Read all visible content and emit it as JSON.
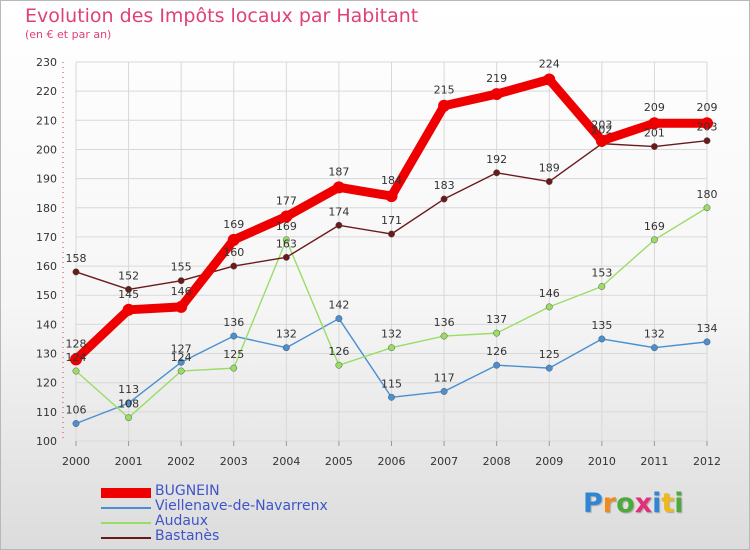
{
  "title": "Evolution des Impôts locaux par Habitant",
  "subtitle": "(en € et par an)",
  "brand": {
    "text": "Proxiti",
    "colors": [
      "#2f86d6",
      "#f08a1c",
      "#4ca93a",
      "#e0307c",
      "#2f86d6",
      "#f0b81c",
      "#4ca93a"
    ]
  },
  "chart_data": {
    "type": "line",
    "title": "Evolution des Impôts locaux par Habitant",
    "subtitle": "(en € et par an)",
    "xlabel": "",
    "ylabel": "",
    "x": [
      "2000",
      "2001",
      "2002",
      "2003",
      "2004",
      "2005",
      "2006",
      "2007",
      "2008",
      "2009",
      "2010",
      "2011",
      "2012"
    ],
    "ylim": [
      100,
      230
    ],
    "yticks": [
      100,
      110,
      120,
      130,
      140,
      150,
      160,
      170,
      180,
      190,
      200,
      210,
      220,
      230
    ],
    "grid": true,
    "legend_position": "bottom-left",
    "series": [
      {
        "name": "BUGNEIN",
        "color": "#ee0000",
        "emphasis": true,
        "values": [
          128,
          145,
          146,
          169,
          177,
          187,
          184,
          215,
          219,
          224,
          203,
          209,
          209
        ]
      },
      {
        "name": "Viellenave-de-Navarrenx",
        "color": "#4a90d0",
        "emphasis": false,
        "values": [
          106,
          113,
          127,
          136,
          132,
          142,
          115,
          117,
          126,
          125,
          135,
          132,
          134
        ]
      },
      {
        "name": "Audaux",
        "color": "#99dd66",
        "emphasis": false,
        "values": [
          124,
          108,
          124,
          125,
          169,
          126,
          132,
          136,
          137,
          146,
          153,
          169,
          180
        ]
      },
      {
        "name": "Bastanès",
        "color": "#6b1a1a",
        "emphasis": false,
        "values": [
          158,
          152,
          155,
          160,
          163,
          174,
          171,
          183,
          192,
          189,
          202,
          201,
          203
        ]
      }
    ]
  }
}
